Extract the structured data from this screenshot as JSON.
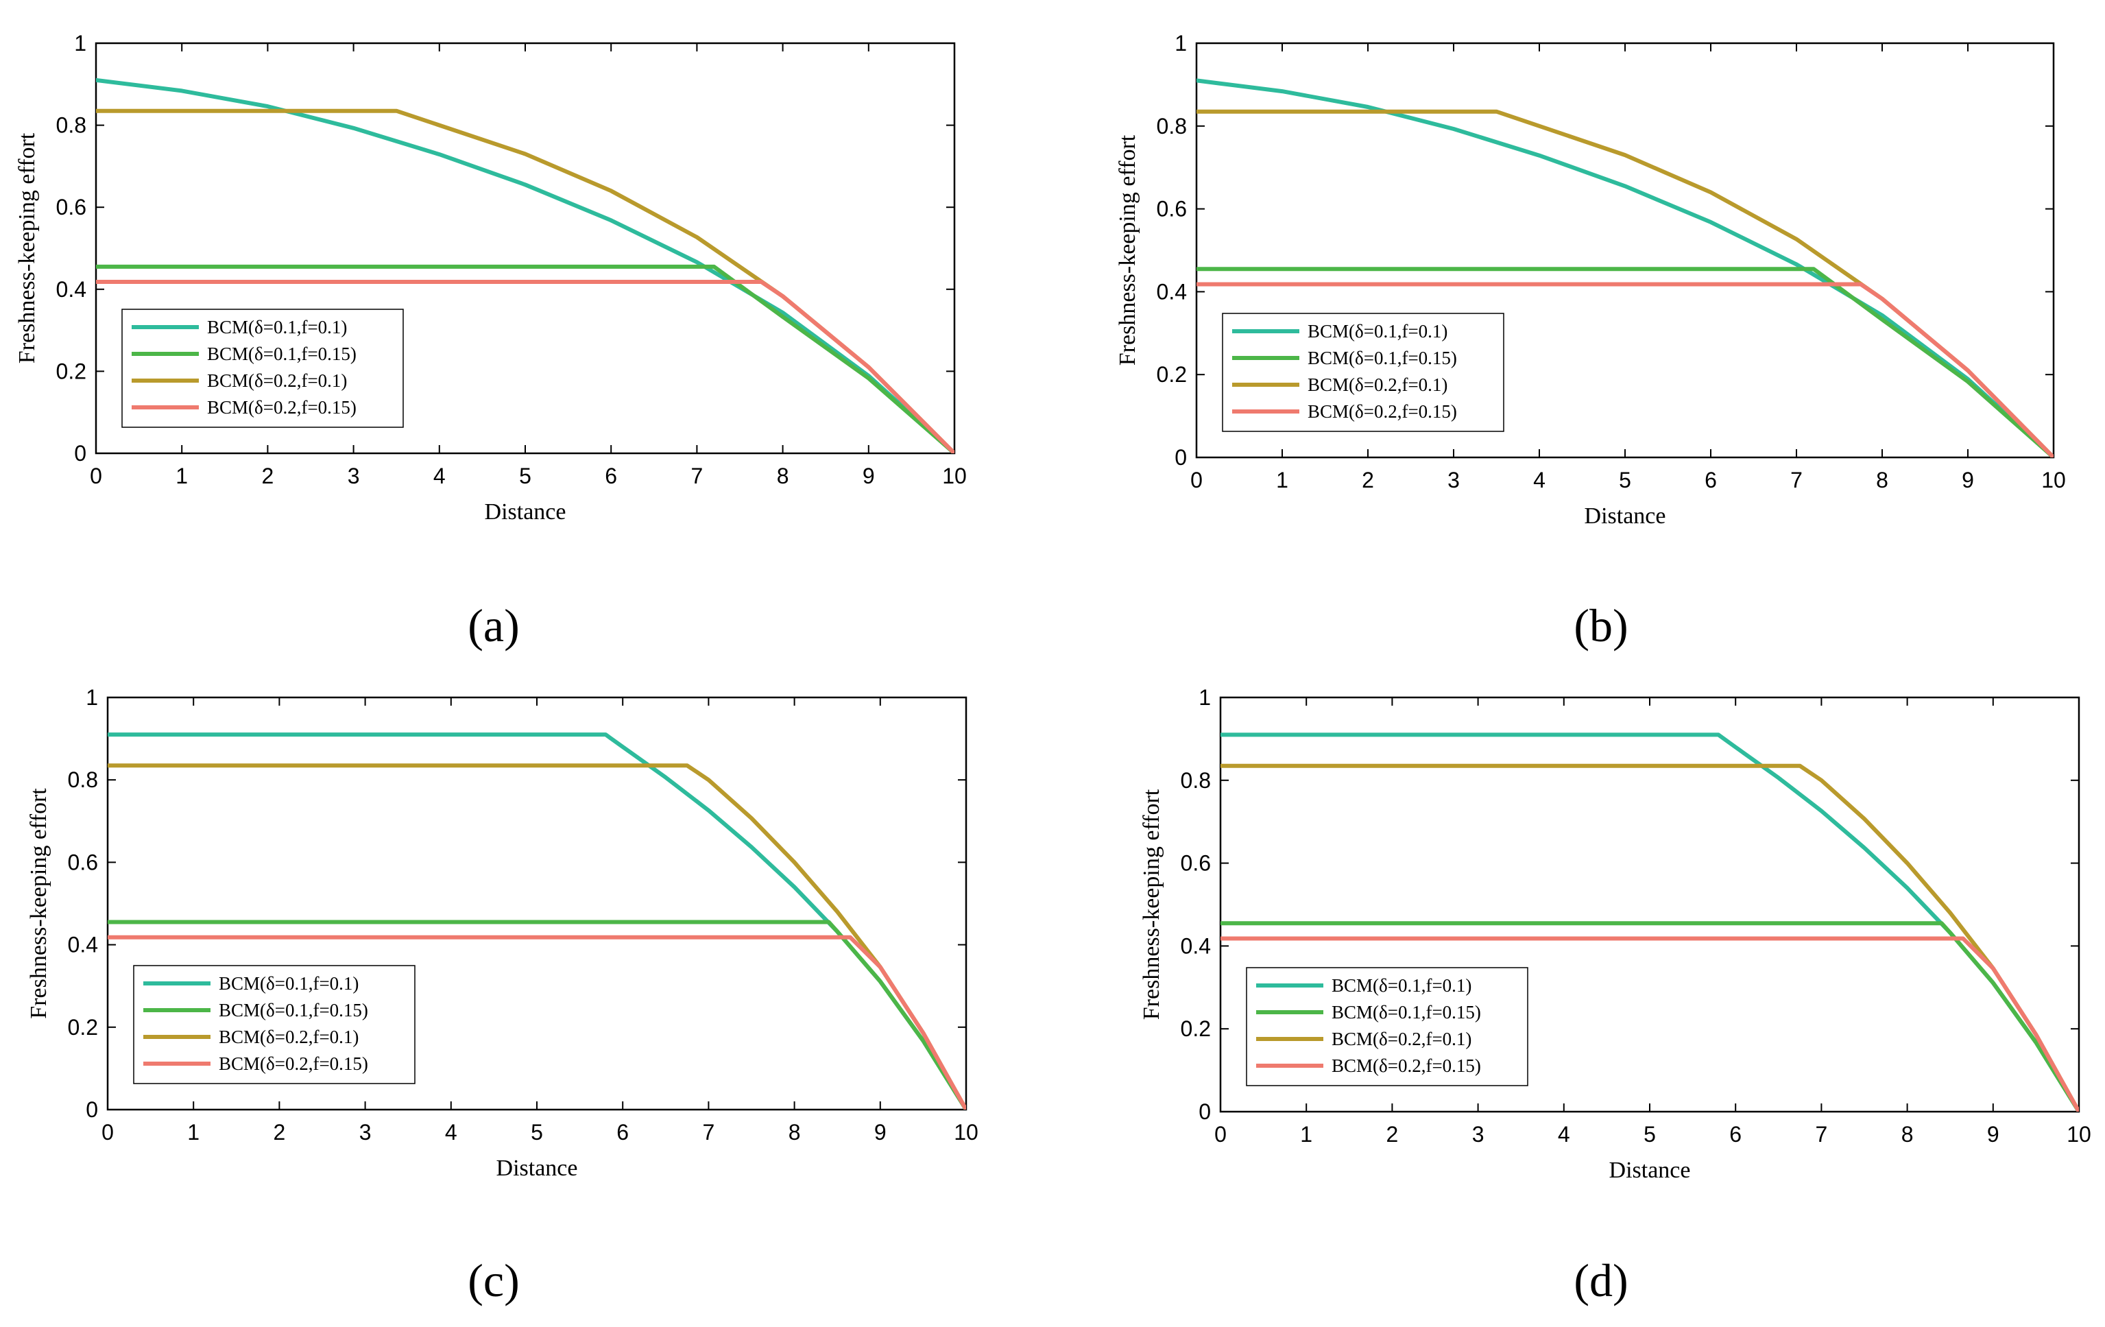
{
  "figure_labels": [
    "(a)",
    "(b)",
    "(c)",
    "(d)"
  ],
  "colors": {
    "series1": "#2ebb9c",
    "series2": "#4cb648",
    "series3": "#b99a2c",
    "series4": "#ef7a6e",
    "axis": "#000000",
    "background": "#ffffff"
  },
  "chart_data": [
    {
      "type": "line",
      "panel_label": "(a)",
      "title": "",
      "xlabel": "Distance",
      "ylabel": "Freshness-keeping effort",
      "xlim": [
        0,
        10
      ],
      "ylim": [
        0,
        1
      ],
      "xticks": [
        "0",
        "1",
        "2",
        "3",
        "4",
        "5",
        "6",
        "7",
        "8",
        "9",
        "10"
      ],
      "yticks": [
        "0",
        "0.2",
        "0.4",
        "0.6",
        "0.8",
        "1"
      ],
      "grid": false,
      "legend_position": "lower-left",
      "series": [
        {
          "name": "BCM(δ=0.1,f=0.1)",
          "color_key": "series1",
          "x": [
            0,
            1,
            2,
            3,
            4,
            5,
            6,
            7,
            8,
            9,
            10
          ],
          "y": [
            0.91,
            0.884,
            0.846,
            0.793,
            0.729,
            0.655,
            0.568,
            0.466,
            0.343,
            0.189,
            0
          ]
        },
        {
          "name": "BCM(δ=0.1,f=0.15)",
          "color_key": "series2",
          "x": [
            0,
            7.2,
            8,
            9,
            10
          ],
          "y": [
            0.455,
            0.455,
            0.333,
            0.183,
            0
          ]
        },
        {
          "name": "BCM(δ=0.2,f=0.1)",
          "color_key": "series3",
          "x": [
            0,
            3.5,
            4,
            5,
            6,
            7,
            8,
            9,
            10
          ],
          "y": [
            0.835,
            0.835,
            0.8,
            0.73,
            0.64,
            0.527,
            0.383,
            0.21,
            0
          ]
        },
        {
          "name": "BCM(δ=0.2,f=0.15)",
          "color_key": "series4",
          "x": [
            0,
            7.75,
            8,
            9,
            10
          ],
          "y": [
            0.418,
            0.418,
            0.383,
            0.21,
            0
          ]
        }
      ]
    },
    {
      "type": "line",
      "panel_label": "(b)",
      "title": "",
      "xlabel": "Distance",
      "ylabel": "Freshness-keeping effort",
      "xlim": [
        0,
        10
      ],
      "ylim": [
        0,
        1
      ],
      "xticks": [
        "0",
        "1",
        "2",
        "3",
        "4",
        "5",
        "6",
        "7",
        "8",
        "9",
        "10"
      ],
      "yticks": [
        "0",
        "0.2",
        "0.4",
        "0.6",
        "0.8",
        "1"
      ],
      "grid": false,
      "legend_position": "lower-left",
      "series": [
        {
          "name": "BCM(δ=0.1,f=0.1)",
          "color_key": "series1",
          "x": [
            0,
            1,
            2,
            3,
            4,
            5,
            6,
            7,
            8,
            9,
            10
          ],
          "y": [
            0.91,
            0.884,
            0.846,
            0.793,
            0.729,
            0.655,
            0.568,
            0.466,
            0.343,
            0.189,
            0
          ]
        },
        {
          "name": "BCM(δ=0.1,f=0.15)",
          "color_key": "series2",
          "x": [
            0,
            7.2,
            8,
            9,
            10
          ],
          "y": [
            0.455,
            0.455,
            0.333,
            0.183,
            0
          ]
        },
        {
          "name": "BCM(δ=0.2,f=0.1)",
          "color_key": "series3",
          "x": [
            0,
            3.5,
            4,
            5,
            6,
            7,
            8,
            9,
            10
          ],
          "y": [
            0.835,
            0.835,
            0.8,
            0.73,
            0.64,
            0.527,
            0.383,
            0.21,
            0
          ]
        },
        {
          "name": "BCM(δ=0.2,f=0.15)",
          "color_key": "series4",
          "x": [
            0,
            7.75,
            8,
            9,
            10
          ],
          "y": [
            0.418,
            0.418,
            0.383,
            0.21,
            0
          ]
        }
      ]
    },
    {
      "type": "line",
      "panel_label": "(c)",
      "title": "",
      "xlabel": "Distance",
      "ylabel": "Freshness-keeping effort",
      "xlim": [
        0,
        10
      ],
      "ylim": [
        0,
        1
      ],
      "xticks": [
        "0",
        "1",
        "2",
        "3",
        "4",
        "5",
        "6",
        "7",
        "8",
        "9",
        "10"
      ],
      "yticks": [
        "0",
        "0.2",
        "0.4",
        "0.6",
        "0.8",
        "1"
      ],
      "grid": false,
      "legend_position": "lower-left",
      "series": [
        {
          "name": "BCM(δ=0.1,f=0.1)",
          "color_key": "series1",
          "x": [
            0,
            5.8,
            6,
            6.5,
            7,
            7.5,
            8,
            8.5,
            9,
            9.5,
            10
          ],
          "y": [
            0.91,
            0.91,
            0.88,
            0.806,
            0.726,
            0.637,
            0.54,
            0.432,
            0.311,
            0.167,
            0
          ]
        },
        {
          "name": "BCM(δ=0.1,f=0.15)",
          "color_key": "series2",
          "x": [
            0,
            8.4,
            8.5,
            9,
            9.5,
            10
          ],
          "y": [
            0.455,
            0.455,
            0.432,
            0.311,
            0.167,
            0
          ]
        },
        {
          "name": "BCM(δ=0.2,f=0.1)",
          "color_key": "series3",
          "x": [
            0,
            6.75,
            7,
            7.5,
            8,
            8.5,
            9,
            9.5,
            10
          ],
          "y": [
            0.835,
            0.835,
            0.8,
            0.707,
            0.6,
            0.48,
            0.346,
            0.186,
            0
          ]
        },
        {
          "name": "BCM(δ=0.2,f=0.15)",
          "color_key": "series4",
          "x": [
            0,
            8.65,
            9,
            9.5,
            10
          ],
          "y": [
            0.418,
            0.418,
            0.346,
            0.186,
            0
          ]
        }
      ]
    },
    {
      "type": "line",
      "panel_label": "(d)",
      "title": "",
      "xlabel": "Distance",
      "ylabel": "Freshness-keeping effort",
      "xlim": [
        0,
        10
      ],
      "ylim": [
        0,
        1
      ],
      "xticks": [
        "0",
        "1",
        "2",
        "3",
        "4",
        "5",
        "6",
        "7",
        "8",
        "9",
        "10"
      ],
      "yticks": [
        "0",
        "0.2",
        "0.4",
        "0.6",
        "0.8",
        "1"
      ],
      "grid": false,
      "legend_position": "lower-left",
      "series": [
        {
          "name": "BCM(δ=0.1,f=0.1)",
          "color_key": "series1",
          "x": [
            0,
            5.8,
            6,
            6.5,
            7,
            7.5,
            8,
            8.5,
            9,
            9.5,
            10
          ],
          "y": [
            0.91,
            0.91,
            0.88,
            0.806,
            0.726,
            0.637,
            0.54,
            0.432,
            0.311,
            0.167,
            0
          ]
        },
        {
          "name": "BCM(δ=0.1,f=0.15)",
          "color_key": "series2",
          "x": [
            0,
            8.4,
            8.5,
            9,
            9.5,
            10
          ],
          "y": [
            0.455,
            0.455,
            0.432,
            0.311,
            0.167,
            0
          ]
        },
        {
          "name": "BCM(δ=0.2,f=0.1)",
          "color_key": "series3",
          "x": [
            0,
            6.75,
            7,
            7.5,
            8,
            8.5,
            9,
            9.5,
            10
          ],
          "y": [
            0.835,
            0.835,
            0.8,
            0.707,
            0.6,
            0.48,
            0.346,
            0.186,
            0
          ]
        },
        {
          "name": "BCM(δ=0.2,f=0.15)",
          "color_key": "series4",
          "x": [
            0,
            8.65,
            9,
            9.5,
            10
          ],
          "y": [
            0.418,
            0.418,
            0.346,
            0.186,
            0
          ]
        }
      ]
    }
  ]
}
